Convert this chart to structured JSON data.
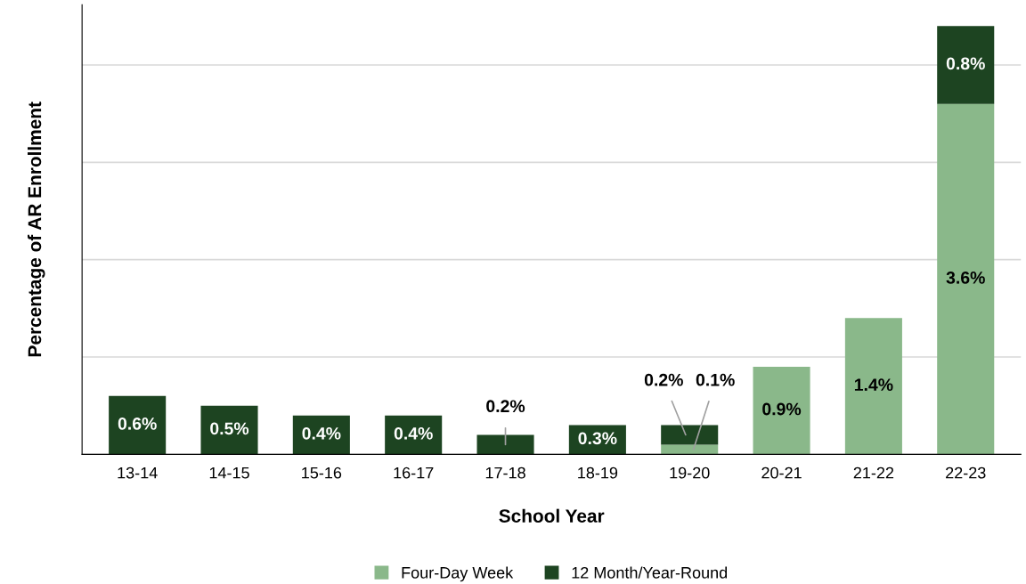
{
  "chart_data": {
    "type": "bar",
    "stacked": true,
    "xlabel": "School Year",
    "ylabel": "Percentage of AR Enrollment",
    "categories": [
      "13-14",
      "14-15",
      "15-16",
      "16-17",
      "17-18",
      "18-19",
      "19-20",
      "20-21",
      "21-22",
      "22-23"
    ],
    "series": [
      {
        "name": "Four-Day Week",
        "color": "#8ab88a",
        "values": [
          null,
          null,
          null,
          null,
          null,
          null,
          0.1,
          0.9,
          1.4,
          3.6
        ],
        "value_labels": [
          null,
          null,
          null,
          null,
          null,
          null,
          "0.1%",
          "0.9%",
          "1.4%",
          "3.6%"
        ]
      },
      {
        "name": "12 Month/Year-Round",
        "color": "#1d4421",
        "values": [
          0.6,
          0.5,
          0.4,
          0.4,
          0.2,
          0.3,
          0.2,
          null,
          null,
          0.8
        ],
        "value_labels": [
          "0.6%",
          "0.5%",
          "0.4%",
          "0.4%",
          "0.2%",
          "0.3%",
          "0.2%",
          null,
          null,
          "0.8%"
        ]
      }
    ],
    "grid": "y",
    "legend": "bottom",
    "tick_labels": "x"
  }
}
